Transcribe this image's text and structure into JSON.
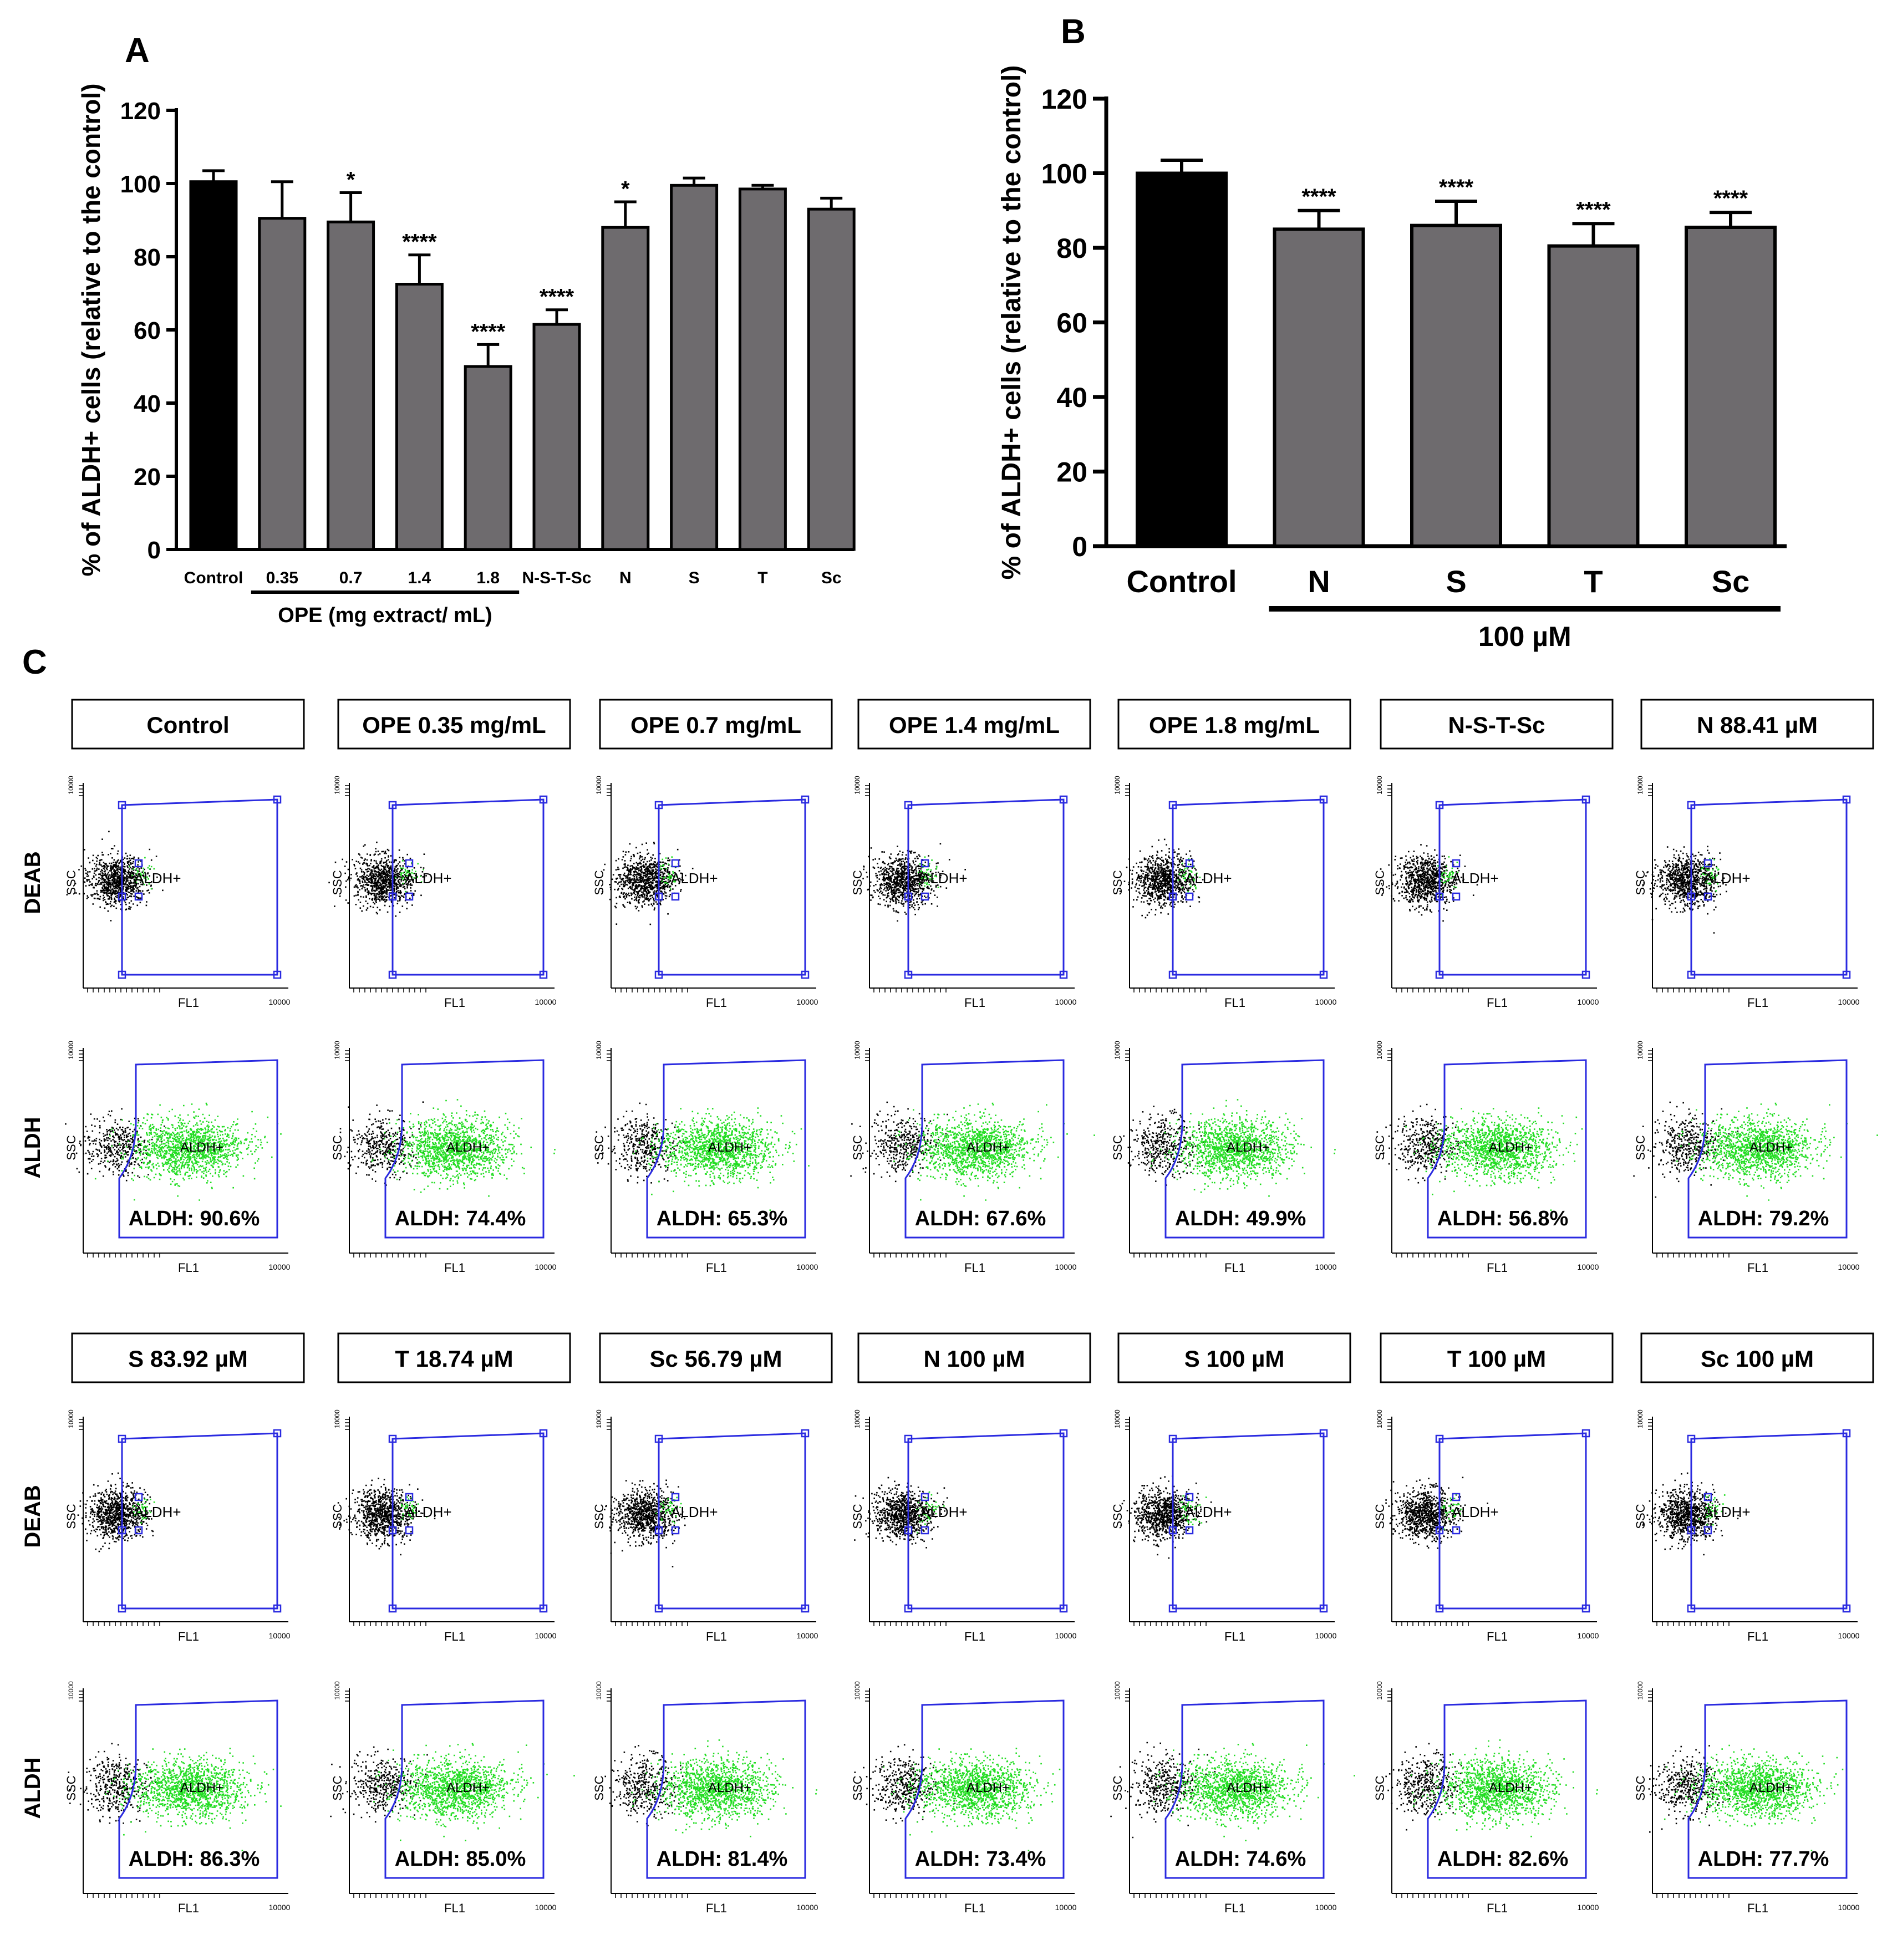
{
  "chart_data": [
    {
      "panel": "A",
      "type": "bar",
      "ylabel": "% of ALDH+ cells (relative to the control)",
      "ylim": [
        0,
        120
      ],
      "yticks": [
        0,
        20,
        40,
        60,
        80,
        100,
        120
      ],
      "categories": [
        "Control",
        "0.35",
        "0.7",
        "1.4",
        "1.8",
        "N-S-T-Sc",
        "N",
        "S",
        "T",
        "Sc"
      ],
      "values": [
        100.5,
        90.5,
        89.5,
        72.5,
        50,
        61.5,
        88,
        99.5,
        98.5,
        93
      ],
      "errors": [
        3,
        10,
        8,
        8,
        6,
        4,
        7,
        2,
        1,
        3
      ],
      "significance": [
        "",
        "",
        "*",
        "****",
        "****",
        "****",
        "*",
        "",
        "",
        ""
      ],
      "group_label": "OPE (mg extract/ mL)",
      "group_range": [
        1,
        4
      ],
      "bar_colors": [
        "#000000",
        "#6e6b6e",
        "#6e6b6e",
        "#6e6b6e",
        "#6e6b6e",
        "#6e6b6e",
        "#6e6b6e",
        "#6e6b6e",
        "#6e6b6e",
        "#6e6b6e"
      ]
    },
    {
      "panel": "B",
      "type": "bar",
      "ylabel": "% of ALDH+ cells (relative to the control)",
      "ylim": [
        0,
        120
      ],
      "yticks": [
        0,
        20,
        40,
        60,
        80,
        100,
        120
      ],
      "categories": [
        "Control",
        "N",
        "S",
        "T",
        "Sc"
      ],
      "values": [
        100,
        85,
        86,
        80.5,
        85.5
      ],
      "errors": [
        3.5,
        5,
        6.5,
        6,
        4
      ],
      "significance": [
        "",
        "****",
        "****",
        "****",
        "****"
      ],
      "group_label": "100 µM",
      "group_range": [
        1,
        4
      ],
      "bar_colors": [
        "#000000",
        "#6e6b6e",
        "#6e6b6e",
        "#6e6b6e",
        "#6e6b6e"
      ]
    },
    {
      "panel": "C",
      "type": "scatter",
      "row_labels": [
        "DEAB",
        "ALDH",
        "DEAB",
        "ALDH"
      ],
      "conditions_top": [
        "Control",
        "OPE 0.35 mg/mL",
        "OPE 0.7 mg/mL",
        "OPE 1.4 mg/mL",
        "OPE 1.8 mg/mL",
        "N-S-T-Sc",
        "N 88.41 µM"
      ],
      "aldh_top": [
        "ALDH: 90.6%",
        "ALDH: 74.4%",
        "ALDH: 65.3%",
        "ALDH: 67.6%",
        "ALDH: 49.9%",
        "ALDH: 56.8%",
        "ALDH: 79.2%"
      ],
      "conditions_bottom": [
        "S 83.92 µM",
        "T 18.74 µM",
        "Sc 56.79 µM",
        "N 100 µM",
        "S 100 µM",
        "T 100 µM",
        "Sc 100 µM"
      ],
      "aldh_bottom": [
        "ALDH: 86.3%",
        "ALDH: 85.0%",
        "ALDH: 81.4%",
        "ALDH: 73.4%",
        "ALDH: 74.6%",
        "ALDH: 82.6%",
        "ALDH: 77.7%"
      ],
      "gate_label": "ALDH+",
      "xlabel": "FL1",
      "ylabel": "SSC",
      "x_max_label": "10000",
      "y_max_label": "10000"
    }
  ],
  "labels": {
    "panel_a": "A",
    "panel_b": "B",
    "panel_c": "C"
  },
  "colors": {
    "gate": "#2a2ae0",
    "green": "#22dd22",
    "bar": "#6e6b6e"
  }
}
